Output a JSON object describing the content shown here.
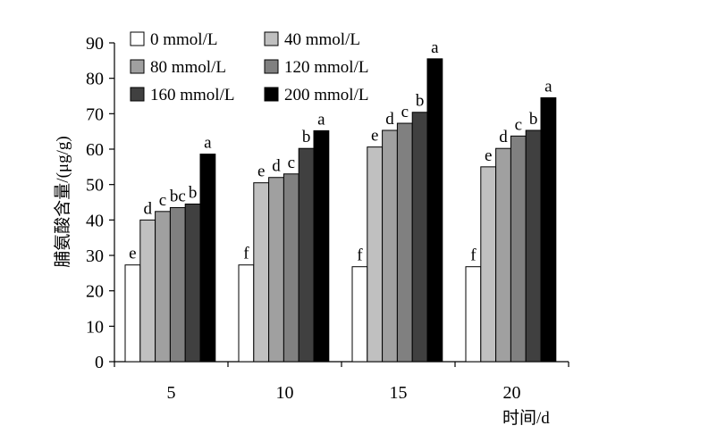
{
  "chart_data": {
    "type": "bar",
    "ylabel": "脯氨酸含量/(μg/g)",
    "xlabel": "时间/d",
    "ylim": [
      0,
      90
    ],
    "yticks": [
      0,
      10,
      20,
      30,
      40,
      50,
      60,
      70,
      80,
      90
    ],
    "categories": [
      "5",
      "10",
      "15",
      "20"
    ],
    "legend_position": "top-left, inside plot",
    "grid": false,
    "series": [
      {
        "name": "0 mmol/L",
        "color": "#ffffff",
        "values": [
          27.3,
          27.3,
          26.8,
          26.8
        ],
        "labels": [
          "e",
          "f",
          "f",
          "f"
        ]
      },
      {
        "name": "40 mmol/L",
        "color": "#c0c0c0",
        "values": [
          40.0,
          50.5,
          60.6,
          55.0
        ],
        "labels": [
          "d",
          "e",
          "e",
          "e"
        ]
      },
      {
        "name": "80 mmol/L",
        "color": "#a0a0a0",
        "values": [
          42.4,
          52.0,
          65.3,
          60.2
        ],
        "labels": [
          "c",
          "d",
          "d",
          "d"
        ]
      },
      {
        "name": "120 mmol/L",
        "color": "#808080",
        "values": [
          43.5,
          53.0,
          67.3,
          63.7
        ],
        "labels": [
          "bc",
          "c",
          "c",
          "c"
        ]
      },
      {
        "name": "160 mmol/L",
        "color": "#404040",
        "values": [
          44.5,
          60.2,
          70.4,
          65.3
        ],
        "labels": [
          "b",
          "b",
          "b",
          "b"
        ]
      },
      {
        "name": "200 mmol/L",
        "color": "#000000",
        "values": [
          58.6,
          65.2,
          85.5,
          74.5
        ],
        "labels": [
          "a",
          "a",
          "a",
          "a"
        ]
      }
    ]
  }
}
